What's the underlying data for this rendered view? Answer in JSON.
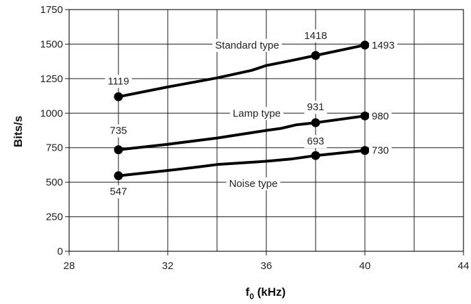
{
  "chart_data": {
    "type": "line",
    "xlabel": "f",
    "xlabel_sub": "0",
    "xlabel_unit": " (kHz)",
    "ylabel": "Bits/s",
    "xlim": [
      28,
      44
    ],
    "ylim": [
      0,
      1750
    ],
    "x_ticks": [
      28,
      32,
      36,
      40,
      44
    ],
    "x_minor_gridlines": [
      30,
      34,
      38,
      42
    ],
    "y_ticks": [
      0,
      250,
      500,
      750,
      1000,
      1250,
      1500,
      1750
    ],
    "grid": true,
    "series": [
      {
        "name": "Standard type",
        "line": [
          [
            30,
            1119
          ],
          [
            32,
            1190
          ],
          [
            34,
            1255
          ],
          [
            35.4,
            1310
          ],
          [
            36,
            1345
          ],
          [
            37,
            1380
          ],
          [
            38,
            1418
          ],
          [
            40,
            1493
          ]
        ],
        "markers": [
          [
            30,
            1119
          ],
          [
            38,
            1418
          ],
          [
            40,
            1493
          ]
        ],
        "marker_labels": [
          "1119",
          "1418",
          "1493"
        ]
      },
      {
        "name": "Lamp type",
        "line": [
          [
            30,
            735
          ],
          [
            32,
            775
          ],
          [
            34,
            820
          ],
          [
            36,
            875
          ],
          [
            36.6,
            890
          ],
          [
            37.2,
            915
          ],
          [
            38,
            931
          ],
          [
            40,
            980
          ]
        ],
        "markers": [
          [
            30,
            735
          ],
          [
            38,
            931
          ],
          [
            40,
            980
          ]
        ],
        "marker_labels": [
          "735",
          "931",
          "980"
        ]
      },
      {
        "name": "Noise type",
        "line": [
          [
            30,
            547
          ],
          [
            32,
            585
          ],
          [
            33.2,
            610
          ],
          [
            34,
            628
          ],
          [
            36,
            652
          ],
          [
            37,
            668
          ],
          [
            38,
            693
          ],
          [
            40,
            730
          ]
        ],
        "markers": [
          [
            30,
            547
          ],
          [
            38,
            693
          ],
          [
            40,
            730
          ]
        ],
        "marker_labels": [
          "547",
          "693",
          "730"
        ]
      }
    ]
  }
}
